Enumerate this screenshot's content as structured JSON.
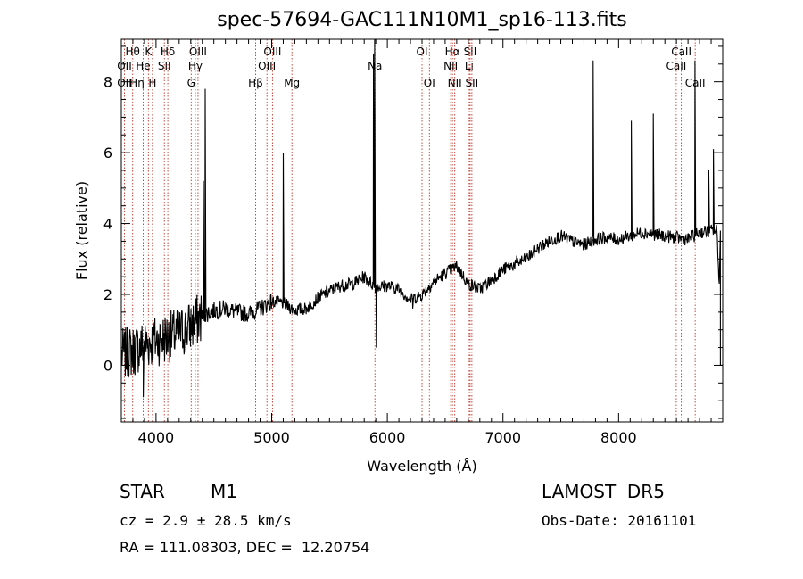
{
  "chart_data": {
    "type": "line",
    "title": "spec-57694-GAC111N10M1_sp16-113.fits",
    "xlabel": "Wavelength (Å)",
    "ylabel": "Flux (relative)",
    "xlim": [
      3700,
      8900
    ],
    "ylim": [
      -1.6,
      9.2
    ],
    "xticks": [
      4000,
      5000,
      6000,
      7000,
      8000
    ],
    "yticks": [
      0,
      2,
      4,
      6,
      8
    ],
    "grid": false,
    "line_color": "#000000",
    "marker_color": "#c0392b",
    "continuum": [
      [
        3700,
        0.3
      ],
      [
        3800,
        0.4
      ],
      [
        3900,
        0.6
      ],
      [
        4000,
        0.7
      ],
      [
        4100,
        0.8
      ],
      [
        4200,
        0.9
      ],
      [
        4300,
        1.1
      ],
      [
        4400,
        1.4
      ],
      [
        4500,
        1.55
      ],
      [
        4600,
        1.6
      ],
      [
        4700,
        1.5
      ],
      [
        4800,
        1.45
      ],
      [
        4900,
        1.6
      ],
      [
        5000,
        1.8
      ],
      [
        5100,
        1.75
      ],
      [
        5200,
        1.55
      ],
      [
        5300,
        1.6
      ],
      [
        5400,
        1.9
      ],
      [
        5500,
        2.1
      ],
      [
        5600,
        2.25
      ],
      [
        5700,
        2.3
      ],
      [
        5800,
        2.5
      ],
      [
        5900,
        2.2
      ],
      [
        6000,
        2.25
      ],
      [
        6100,
        2.15
      ],
      [
        6200,
        1.85
      ],
      [
        6300,
        2.0
      ],
      [
        6400,
        2.35
      ],
      [
        6500,
        2.6
      ],
      [
        6600,
        2.8
      ],
      [
        6700,
        2.3
      ],
      [
        6800,
        2.15
      ],
      [
        6900,
        2.4
      ],
      [
        7000,
        2.7
      ],
      [
        7100,
        2.85
      ],
      [
        7200,
        3.0
      ],
      [
        7300,
        3.3
      ],
      [
        7400,
        3.5
      ],
      [
        7500,
        3.65
      ],
      [
        7600,
        3.5
      ],
      [
        7700,
        3.4
      ],
      [
        7800,
        3.55
      ],
      [
        7900,
        3.6
      ],
      [
        8000,
        3.55
      ],
      [
        8100,
        3.65
      ],
      [
        8200,
        3.75
      ],
      [
        8300,
        3.7
      ],
      [
        8400,
        3.65
      ],
      [
        8500,
        3.6
      ],
      [
        8600,
        3.55
      ],
      [
        8700,
        3.75
      ],
      [
        8800,
        3.8
      ],
      [
        8850,
        3.8
      ],
      [
        8900,
        0.0
      ]
    ],
    "emission_spikes": [
      [
        4410,
        5.2
      ],
      [
        4425,
        7.8
      ],
      [
        5100,
        6.0
      ],
      [
        5880,
        8.8
      ],
      [
        5890,
        9.2
      ],
      [
        7780,
        8.6
      ],
      [
        8110,
        6.9
      ],
      [
        8300,
        7.1
      ],
      [
        8660,
        8.6
      ],
      [
        8780,
        5.5
      ],
      [
        8820,
        6.1
      ]
    ],
    "absorption_spikes": [
      [
        3890,
        -0.9
      ],
      [
        5905,
        0.5
      ],
      [
        6220,
        1.6
      ],
      [
        8900,
        0.0
      ]
    ],
    "line_markers": [
      {
        "label": "Hθ",
        "x": 3798,
        "row": 0
      },
      {
        "label": "K",
        "x": 3934,
        "row": 0
      },
      {
        "label": "Hδ",
        "x": 4102,
        "row": 0
      },
      {
        "label": "OII",
        "x": 3727,
        "row": 1
      },
      {
        "label": "He",
        "x": 3889,
        "row": 1
      },
      {
        "label": "SII",
        "x": 4072,
        "row": 1
      },
      {
        "label": "OII",
        "x": 3727,
        "row": 2
      },
      {
        "label": "Hη",
        "x": 3835,
        "row": 2
      },
      {
        "label": "H",
        "x": 3969,
        "row": 2
      },
      {
        "label": "OIII",
        "x": 4363,
        "row": 0
      },
      {
        "label": "Hγ",
        "x": 4340,
        "row": 1
      },
      {
        "label": "G",
        "x": 4304,
        "row": 2
      },
      {
        "label": "OIII",
        "x": 5007,
        "row": 0
      },
      {
        "label": "OIII",
        "x": 4959,
        "row": 1
      },
      {
        "label": "Hβ",
        "x": 4861,
        "row": 2
      },
      {
        "label": "Mg",
        "x": 5175,
        "row": 2
      },
      {
        "label": "Na",
        "x": 5893,
        "row": 1
      },
      {
        "label": "OI",
        "x": 6300,
        "row": 0
      },
      {
        "label": "OI",
        "x": 6364,
        "row": 2
      },
      {
        "label": "Hα",
        "x": 6563,
        "row": 0
      },
      {
        "label": "SII",
        "x": 6716,
        "row": 0
      },
      {
        "label": "NII",
        "x": 6548,
        "row": 1
      },
      {
        "label": "Li",
        "x": 6708,
        "row": 1
      },
      {
        "label": "NII",
        "x": 6583,
        "row": 2
      },
      {
        "label": "SII",
        "x": 6731,
        "row": 2
      },
      {
        "label": "CaII",
        "x": 8542,
        "row": 0
      },
      {
        "label": "CaII",
        "x": 8498,
        "row": 1
      },
      {
        "label": "CaII",
        "x": 8662,
        "row": 2
      }
    ]
  },
  "info": {
    "class": "STAR",
    "subclass": "M1",
    "survey": "LAMOST  DR5",
    "cz": "cz = 2.9 ± 28.5 km/s",
    "obs_date": "Obs-Date: 20161101",
    "radec": "RA = 111.08303, DEC =  12.20754"
  }
}
